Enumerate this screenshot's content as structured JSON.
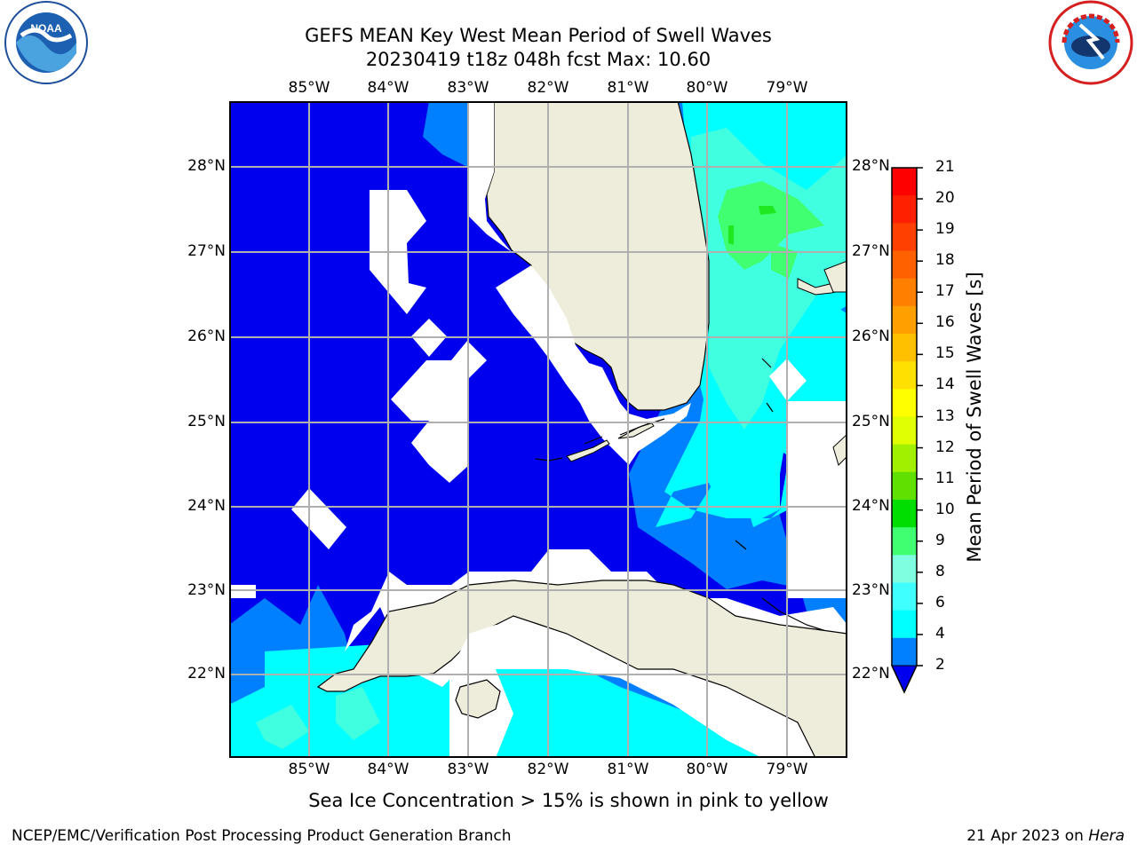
{
  "title": {
    "line1": "GEFS MEAN Key West Mean Period of Swell Waves",
    "line2": "20230419 t18z 048h fcst   Max: 10.60"
  },
  "logos": {
    "left": {
      "icon": "noaa-logo",
      "text": "NOAA"
    },
    "right": {
      "icon": "nws-logo",
      "text": "NATIONAL WEATHER SERVICE"
    }
  },
  "map": {
    "lon_labels": [
      "85°W",
      "84°W",
      "83°W",
      "82°W",
      "81°W",
      "80°W",
      "79°W"
    ],
    "lat_labels": [
      "28°N",
      "27°N",
      "26°N",
      "25°N",
      "24°N",
      "23°N",
      "22°N"
    ],
    "colors": {
      "land": "#eeecdb",
      "ocean_2_4": "#0000ee",
      "ocean_4_6": "#0080ff",
      "ocean_6_8": "#00ffff",
      "ocean_8_9": "#40ffe0",
      "ocean_9_10": "#40ff70",
      "ocean_10_11": "#20e820",
      "grid": "#b0b0b0"
    }
  },
  "colorbar": {
    "label": "Mean Period of Swell Waves [s]",
    "ticks": [
      "21",
      "20",
      "19",
      "18",
      "17",
      "16",
      "15",
      "14",
      "13",
      "12",
      "11",
      "10",
      "9",
      "8",
      "6",
      "4",
      "2"
    ],
    "colors": [
      "#ff0000",
      "#ff2000",
      "#ff4000",
      "#ff6000",
      "#ff8000",
      "#ffa000",
      "#ffc000",
      "#ffe000",
      "#ffff00",
      "#e0ff00",
      "#a0f000",
      "#60e000",
      "#00dd00",
      "#40ff70",
      "#80ffe0",
      "#40ffff",
      "#00ffff",
      "#0080ff"
    ],
    "extend_color": "#0000ee"
  },
  "footer": {
    "ice_note": "Sea Ice Concentration > 15% is shown in pink to yellow",
    "left": "NCEP/EMC/Verification Post Processing Product Generation Branch",
    "right_date": "21 Apr 2023 on ",
    "right_machine": "Hera"
  }
}
